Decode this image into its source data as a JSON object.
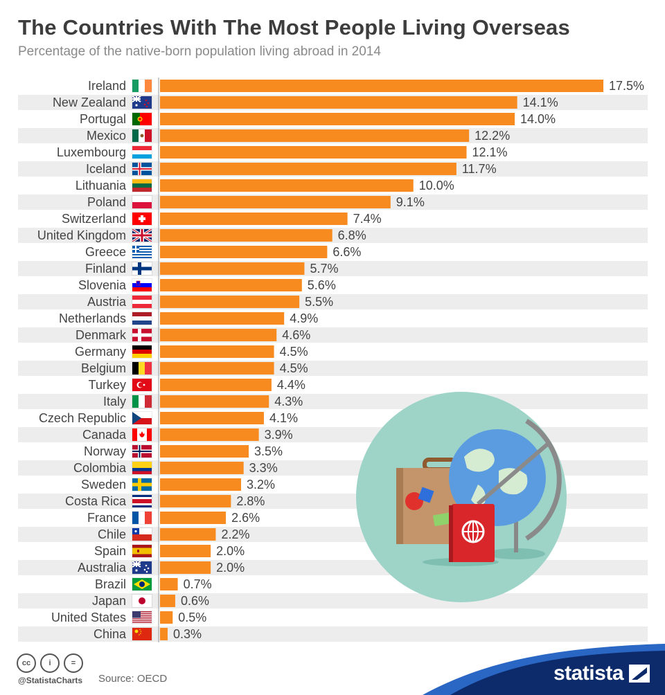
{
  "header": {
    "title": "The Countries With The Most People Living Overseas",
    "subtitle": "Percentage of the native-born population living abroad in 2014"
  },
  "chart_data": {
    "type": "bar",
    "orientation": "horizontal",
    "title": "The Countries With The Most People Living Overseas",
    "subtitle": "Percentage of the native-born population living abroad in 2014",
    "xlabel": "",
    "ylabel": "",
    "value_suffix": "%",
    "xlim": [
      0,
      17.5
    ],
    "grid": false,
    "bar_color": "#f78b1f",
    "stripe_color": "#ededed",
    "categories": [
      "Ireland",
      "New Zealand",
      "Portugal",
      "Mexico",
      "Luxembourg",
      "Iceland",
      "Lithuania",
      "Poland",
      "Switzerland",
      "United Kingdom",
      "Greece",
      "Finland",
      "Slovenia",
      "Austria",
      "Netherlands",
      "Denmark",
      "Germany",
      "Belgium",
      "Turkey",
      "Italy",
      "Czech Republic",
      "Canada",
      "Norway",
      "Colombia",
      "Sweden",
      "Costa Rica",
      "France",
      "Chile",
      "Spain",
      "Australia",
      "Brazil",
      "Japan",
      "United States",
      "China"
    ],
    "values": [
      17.5,
      14.1,
      14.0,
      12.2,
      12.1,
      11.7,
      10.0,
      9.1,
      7.4,
      6.8,
      6.6,
      5.7,
      5.6,
      5.5,
      4.9,
      4.6,
      4.5,
      4.5,
      4.4,
      4.3,
      4.1,
      3.9,
      3.5,
      3.3,
      3.2,
      2.8,
      2.6,
      2.2,
      2.0,
      2.0,
      0.7,
      0.6,
      0.5,
      0.3
    ],
    "value_labels": [
      "17.5%",
      "14.1%",
      "14.0%",
      "12.2%",
      "12.1%",
      "11.7%",
      "10.0%",
      "9.1%",
      "7.4%",
      "6.8%",
      "6.6%",
      "5.7%",
      "5.6%",
      "5.5%",
      "4.9%",
      "4.6%",
      "4.5%",
      "4.5%",
      "4.4%",
      "4.3%",
      "4.1%",
      "3.9%",
      "3.5%",
      "3.3%",
      "3.2%",
      "2.8%",
      "2.6%",
      "2.2%",
      "2.0%",
      "2.0%",
      "0.7%",
      "0.6%",
      "0.5%",
      "0.3%"
    ]
  },
  "flags": [
    "ireland-flag-icon",
    "new-zealand-flag-icon",
    "portugal-flag-icon",
    "mexico-flag-icon",
    "luxembourg-flag-icon",
    "iceland-flag-icon",
    "lithuania-flag-icon",
    "poland-flag-icon",
    "switzerland-flag-icon",
    "united-kingdom-flag-icon",
    "greece-flag-icon",
    "finland-flag-icon",
    "slovenia-flag-icon",
    "austria-flag-icon",
    "netherlands-flag-icon",
    "denmark-flag-icon",
    "germany-flag-icon",
    "belgium-flag-icon",
    "turkey-flag-icon",
    "italy-flag-icon",
    "czech-republic-flag-icon",
    "canada-flag-icon",
    "norway-flag-icon",
    "colombia-flag-icon",
    "sweden-flag-icon",
    "costa-rica-flag-icon",
    "france-flag-icon",
    "chile-flag-icon",
    "spain-flag-icon",
    "australia-flag-icon",
    "brazil-flag-icon",
    "japan-flag-icon",
    "united-states-flag-icon",
    "china-flag-icon"
  ],
  "illustration": {
    "icon": "travel-illustration-icon",
    "circle_color": "#9ed4c8"
  },
  "footer": {
    "license_icons": [
      "cc-icon",
      "attribution-icon",
      "no-derivatives-icon"
    ],
    "license_symbols": [
      "cc",
      "i",
      "="
    ],
    "handle": "@StatistaCharts",
    "source": "Source: OECD",
    "brand": "statista",
    "brand_color": "#0d2b6b"
  }
}
